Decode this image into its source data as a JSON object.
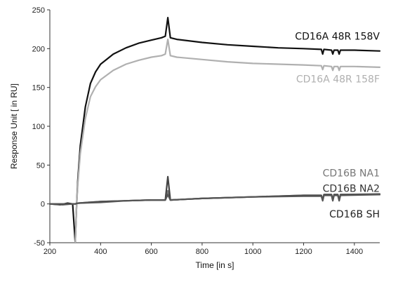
{
  "chart_data": {
    "type": "line",
    "title": "",
    "xlabel": "Time [in s]",
    "ylabel": "Response Unit [ in RU]",
    "xlim": [
      200,
      1500
    ],
    "ylim": [
      -50,
      250
    ],
    "xticks": [
      200,
      400,
      600,
      800,
      1000,
      1200,
      1400
    ],
    "yticks": [
      -50,
      0,
      50,
      100,
      150,
      200,
      250
    ],
    "grid": false,
    "legend": "inline labels at right end of curves",
    "series": [
      {
        "name": "CD16A 48R 158V",
        "color": "#111111",
        "points": [
          [
            200,
            0
          ],
          [
            240,
            -1
          ],
          [
            270,
            1
          ],
          [
            290,
            0
          ],
          [
            300,
            -50
          ],
          [
            305,
            -5
          ],
          [
            310,
            30
          ],
          [
            320,
            75
          ],
          [
            340,
            125
          ],
          [
            360,
            155
          ],
          [
            380,
            170
          ],
          [
            400,
            180
          ],
          [
            450,
            193
          ],
          [
            500,
            201
          ],
          [
            550,
            207
          ],
          [
            600,
            211
          ],
          [
            640,
            214
          ],
          [
            655,
            216
          ],
          [
            665,
            240
          ],
          [
            675,
            214
          ],
          [
            700,
            212
          ],
          [
            800,
            208
          ],
          [
            900,
            205
          ],
          [
            1000,
            203
          ],
          [
            1100,
            201
          ],
          [
            1200,
            200
          ],
          [
            1270,
            199
          ],
          [
            1275,
            193
          ],
          [
            1280,
            199
          ],
          [
            1310,
            198
          ],
          [
            1315,
            193
          ],
          [
            1320,
            198
          ],
          [
            1335,
            198
          ],
          [
            1340,
            193
          ],
          [
            1345,
            198
          ],
          [
            1400,
            198
          ],
          [
            1500,
            197
          ]
        ]
      },
      {
        "name": "CD16A 48R 158F",
        "color": "#b0b0b0",
        "points": [
          [
            300,
            -50
          ],
          [
            305,
            -5
          ],
          [
            310,
            25
          ],
          [
            320,
            65
          ],
          [
            340,
            110
          ],
          [
            360,
            138
          ],
          [
            380,
            151
          ],
          [
            400,
            160
          ],
          [
            450,
            172
          ],
          [
            500,
            180
          ],
          [
            550,
            185
          ],
          [
            600,
            189
          ],
          [
            640,
            191
          ],
          [
            655,
            193
          ],
          [
            665,
            212
          ],
          [
            675,
            191
          ],
          [
            700,
            189
          ],
          [
            800,
            186
          ],
          [
            900,
            183
          ],
          [
            1000,
            181
          ],
          [
            1100,
            180
          ],
          [
            1200,
            179
          ],
          [
            1270,
            178
          ],
          [
            1275,
            173
          ],
          [
            1280,
            178
          ],
          [
            1310,
            177
          ],
          [
            1315,
            172
          ],
          [
            1320,
            177
          ],
          [
            1335,
            177
          ],
          [
            1340,
            172
          ],
          [
            1345,
            177
          ],
          [
            1400,
            177
          ],
          [
            1500,
            176
          ]
        ]
      },
      {
        "name": "CD16B NA1",
        "color": "#777777",
        "points": [
          [
            200,
            0
          ],
          [
            250,
            0
          ],
          [
            290,
            0
          ],
          [
            300,
            0
          ],
          [
            310,
            1
          ],
          [
            400,
            3
          ],
          [
            500,
            4
          ],
          [
            600,
            5
          ],
          [
            655,
            5
          ],
          [
            665,
            17
          ],
          [
            675,
            5
          ],
          [
            800,
            7
          ],
          [
            1000,
            9
          ],
          [
            1200,
            11
          ],
          [
            1270,
            11
          ],
          [
            1275,
            5
          ],
          [
            1280,
            12
          ],
          [
            1310,
            12
          ],
          [
            1315,
            5
          ],
          [
            1320,
            12
          ],
          [
            1335,
            12
          ],
          [
            1340,
            5
          ],
          [
            1345,
            12
          ],
          [
            1500,
            13
          ]
        ]
      },
      {
        "name": "CD16B NA2",
        "color": "#444444",
        "points": [
          [
            200,
            0
          ],
          [
            250,
            -1
          ],
          [
            290,
            0
          ],
          [
            300,
            0
          ],
          [
            310,
            1
          ],
          [
            400,
            3
          ],
          [
            500,
            4
          ],
          [
            600,
            5
          ],
          [
            655,
            5
          ],
          [
            665,
            35
          ],
          [
            675,
            5
          ],
          [
            800,
            7
          ],
          [
            1000,
            9
          ],
          [
            1200,
            11
          ],
          [
            1270,
            11
          ],
          [
            1275,
            5
          ],
          [
            1280,
            12
          ],
          [
            1310,
            12
          ],
          [
            1315,
            5
          ],
          [
            1320,
            12
          ],
          [
            1335,
            12
          ],
          [
            1340,
            5
          ],
          [
            1345,
            12
          ],
          [
            1500,
            12
          ]
        ]
      },
      {
        "name": "CD16B SH",
        "color": "#555555",
        "points": [
          [
            200,
            0
          ],
          [
            250,
            0
          ],
          [
            290,
            0
          ],
          [
            300,
            0
          ],
          [
            310,
            1
          ],
          [
            400,
            2
          ],
          [
            500,
            4
          ],
          [
            600,
            5
          ],
          [
            655,
            5
          ],
          [
            665,
            12
          ],
          [
            675,
            5
          ],
          [
            800,
            7
          ],
          [
            1000,
            9
          ],
          [
            1200,
            10
          ],
          [
            1270,
            10
          ],
          [
            1275,
            4
          ],
          [
            1280,
            11
          ],
          [
            1310,
            11
          ],
          [
            1315,
            4
          ],
          [
            1320,
            11
          ],
          [
            1335,
            11
          ],
          [
            1340,
            4
          ],
          [
            1345,
            11
          ],
          [
            1500,
            12
          ]
        ]
      }
    ],
    "labels": [
      {
        "text": "CD16A 48R 158V",
        "color": "#111111",
        "x": 1500,
        "y": 216,
        "anchor": "end"
      },
      {
        "text": "CD16A 48R 158F",
        "color": "#b0b0b0",
        "x": 1500,
        "y": 161,
        "anchor": "end"
      },
      {
        "text": "CD16B NA1",
        "color": "#777777",
        "x": 1500,
        "y": 40,
        "anchor": "end"
      },
      {
        "text": "CD16B NA2",
        "color": "#333333",
        "x": 1500,
        "y": 20,
        "anchor": "end"
      },
      {
        "text": "CD16B SH",
        "color": "#222222",
        "x": 1500,
        "y": -13,
        "anchor": "end"
      }
    ]
  }
}
